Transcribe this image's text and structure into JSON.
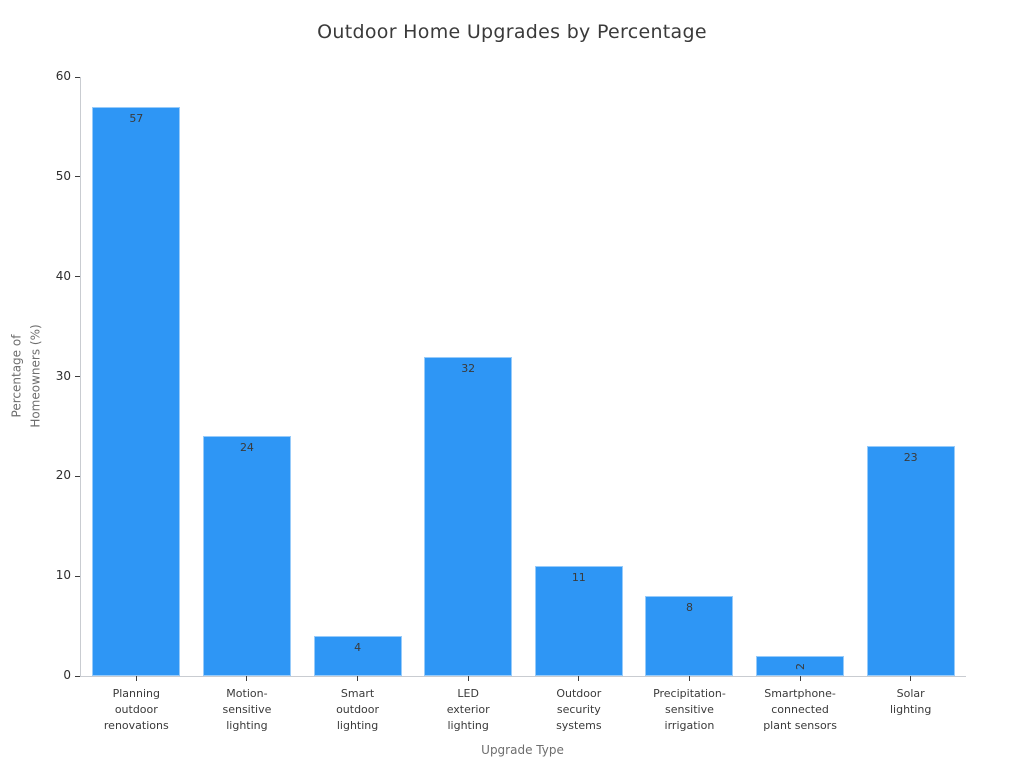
{
  "chart_data": {
    "type": "bar",
    "title": "Outdoor Home Upgrades by Percentage",
    "xlabel": "Upgrade Type",
    "ylabel": "Percentage of\nHomeowners (%)",
    "categories": [
      "Planning\noutdoor\nrenovations",
      "Motion-\nsensitive\nlighting",
      "Smart\noutdoor\nlighting",
      "LED\nexterior\nlighting",
      "Outdoor\nsecurity\nsystems",
      "Precipitation-\nsensitive\nirrigation",
      "Smartphone-\nconnected\nplant sensors",
      "Solar\nlighting"
    ],
    "values": [
      57,
      24,
      4,
      32,
      11,
      8,
      2,
      23
    ],
    "yticks": [
      0,
      10,
      20,
      30,
      40,
      50,
      60
    ],
    "ylim": [
      0,
      60
    ],
    "grid": false,
    "legend": null,
    "colors": {
      "bar": "#2E96F5",
      "bar_edge": "rgba(255,255,255,0.5)",
      "spine": "#c9ccd1",
      "tick": "#3d3d3d",
      "tick_label": "#2e2e2e",
      "axis_label": "#6e6e6e",
      "title": "#3a3a3a",
      "background": "#ffffff"
    }
  }
}
